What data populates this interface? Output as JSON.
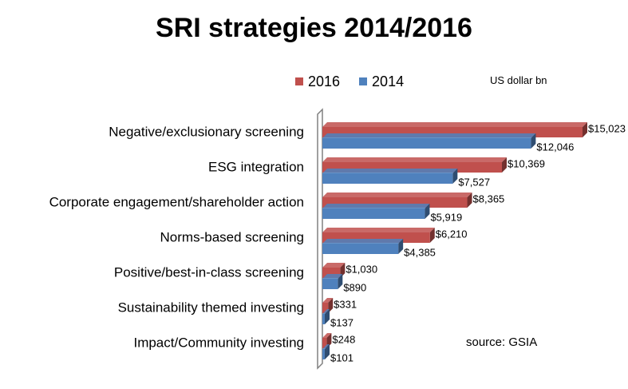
{
  "chart_data": {
    "type": "bar",
    "orientation": "horizontal",
    "title": "SRI strategies 2014/2016",
    "unit_note": "US dollar bn",
    "source_note": "source: GSIA",
    "legend_position": "top",
    "grid": false,
    "xlim": [
      0,
      15023
    ],
    "categories": [
      "Negative/exclusionary screening",
      "ESG integration",
      "Corporate engagement/shareholder action",
      "Norms-based screening",
      "Positive/best-in-class screening",
      "Sustainability themed investing",
      "Impact/Community investing"
    ],
    "series": [
      {
        "name": "2016",
        "color": "#c0504d",
        "values": [
          15023,
          10369,
          8365,
          6210,
          1030,
          331,
          248
        ],
        "labels": [
          "$15,023",
          "$10,369",
          "$8,365",
          "$6,210",
          "$1,030",
          "$331",
          "$248"
        ]
      },
      {
        "name": "2014",
        "color": "#4f81bd",
        "values": [
          12046,
          7527,
          5919,
          4385,
          890,
          137,
          101
        ],
        "labels": [
          "$12,046",
          "$7,527",
          "$5,919",
          "$4,385",
          "$890",
          "$137",
          "$101"
        ]
      }
    ]
  }
}
